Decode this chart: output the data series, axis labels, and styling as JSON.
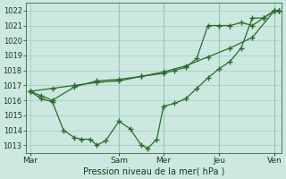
{
  "xlabel": "Pression niveau de la mer( hPa )",
  "ylim": [
    1012.5,
    1022.5
  ],
  "yticks": [
    1013,
    1014,
    1015,
    1016,
    1017,
    1018,
    1019,
    1020,
    1021,
    1022
  ],
  "xtick_labels": [
    "Mar",
    "Sam",
    "Mer",
    "Jeu",
    "Ven"
  ],
  "xtick_positions": [
    0,
    4,
    6,
    8.5,
    11
  ],
  "xlim": [
    -0.2,
    11.3
  ],
  "background_color": "#cce8e0",
  "grid_color": "#9ecfbf",
  "line_color": "#2d6a2d",
  "vlines_color": "#7ab89a",
  "vlines": [
    4,
    6,
    8.5,
    11
  ],
  "line1_x": [
    0,
    0.5,
    1.0,
    1.5,
    2.0,
    2.3,
    2.7,
    3.0,
    3.4,
    4.0,
    4.5,
    5.0,
    5.3,
    5.7,
    6.0,
    6.5,
    7.0,
    7.5,
    8.0,
    8.5,
    9.0,
    9.5,
    10.0,
    10.5,
    11.0,
    11.2
  ],
  "line1_y": [
    1016.6,
    1016.1,
    1015.9,
    1014.0,
    1013.5,
    1013.4,
    1013.4,
    1013.0,
    1013.3,
    1014.6,
    1014.1,
    1013.0,
    1012.8,
    1013.4,
    1015.6,
    1015.8,
    1016.1,
    1016.8,
    1017.5,
    1018.1,
    1018.6,
    1019.5,
    1021.5,
    1021.5,
    1022.0,
    1022.0
  ],
  "line2_x": [
    0,
    1.0,
    2.0,
    3.0,
    4.0,
    5.0,
    6.0,
    7.0,
    8.0,
    9.0,
    10.0,
    11.0,
    11.2
  ],
  "line2_y": [
    1016.6,
    1016.8,
    1017.0,
    1017.2,
    1017.3,
    1017.6,
    1017.9,
    1018.3,
    1018.9,
    1019.5,
    1020.2,
    1022.0,
    1022.0
  ],
  "line3_x": [
    0,
    0.5,
    1.0,
    2.0,
    3.0,
    4.0,
    5.0,
    6.0,
    6.5,
    7.0,
    7.5,
    8.0,
    8.5,
    9.0,
    9.5,
    10.0,
    10.5,
    11.0,
    11.2
  ],
  "line3_y": [
    1016.6,
    1016.3,
    1016.0,
    1016.9,
    1017.3,
    1017.4,
    1017.6,
    1017.8,
    1018.0,
    1018.2,
    1018.8,
    1021.0,
    1021.0,
    1021.0,
    1021.2,
    1021.0,
    1021.5,
    1022.0,
    1022.0
  ],
  "marker_size": 2.5,
  "linewidth": 0.9
}
